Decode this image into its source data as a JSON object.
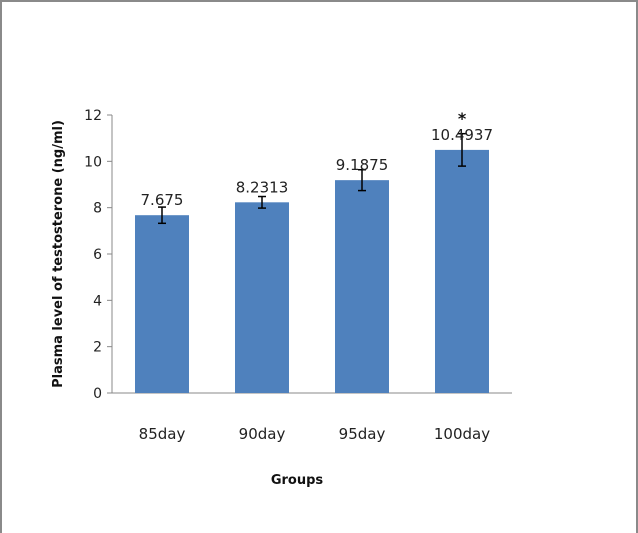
{
  "chart_data": {
    "type": "bar",
    "categories": [
      "85day",
      "90day",
      "95day",
      "100day"
    ],
    "values": [
      7.675,
      8.2313,
      9.1875,
      10.4937
    ],
    "data_labels": [
      "7.675",
      "8.2313",
      "9.1875",
      "10.4937"
    ],
    "error": [
      0.35,
      0.25,
      0.45,
      0.7
    ],
    "annotations": [
      {
        "category": "100day",
        "text": "*"
      }
    ],
    "xlabel": "Groups",
    "ylabel": "Plasma level of testosterone (ng/ml)",
    "ylim": [
      0,
      12
    ],
    "yticks": [
      0,
      2,
      4,
      6,
      8,
      10,
      12
    ],
    "grid": false,
    "legend": "none",
    "bar_color": "#4F81BD"
  }
}
